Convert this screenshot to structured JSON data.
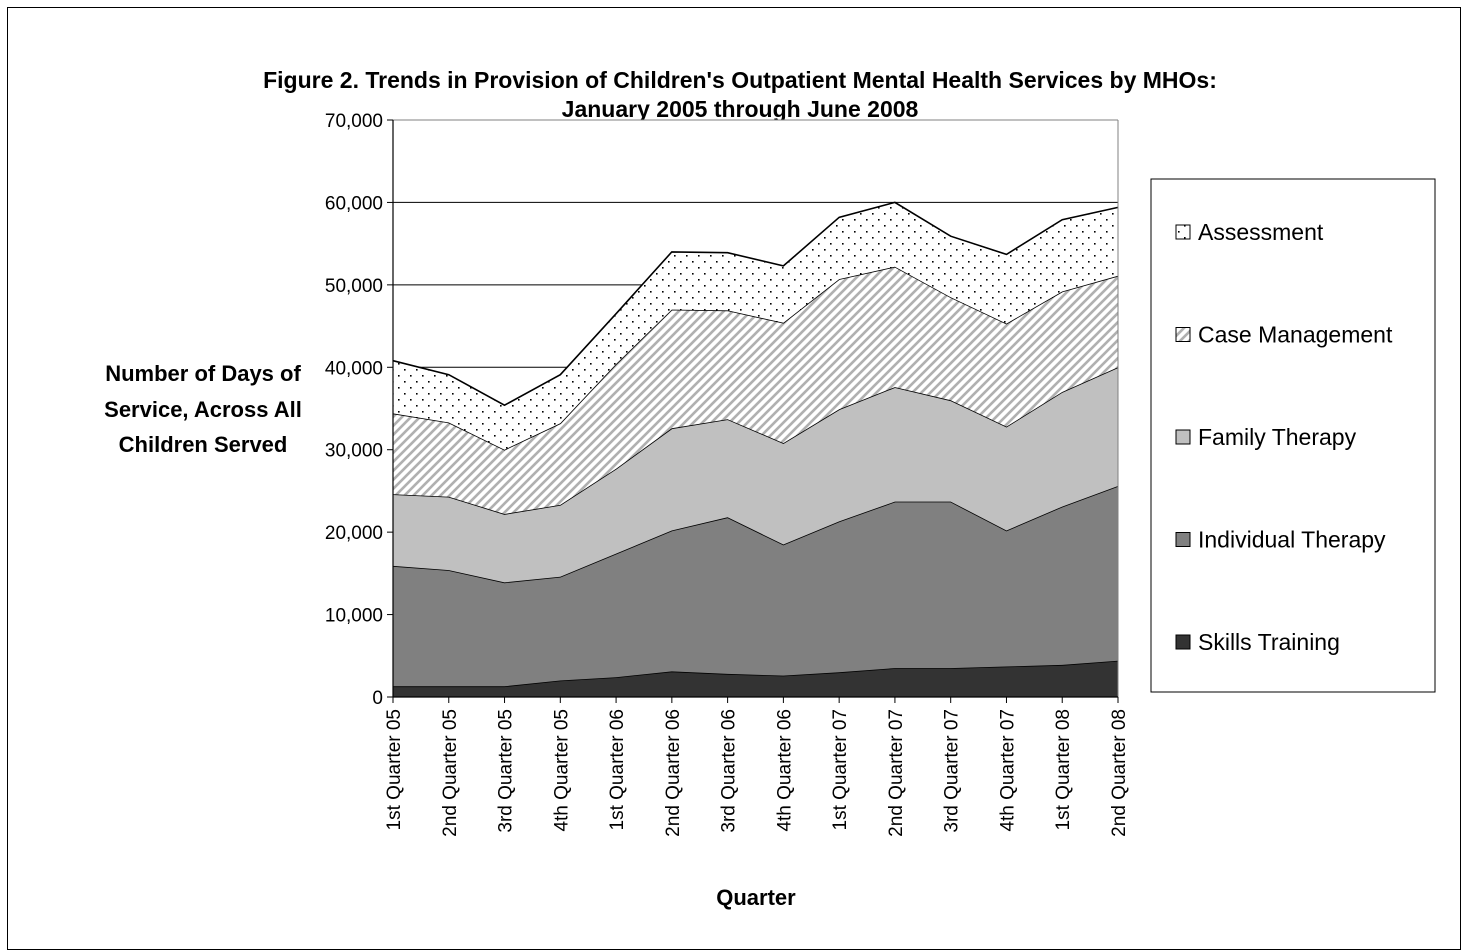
{
  "chart_data": {
    "type": "area",
    "stacked": true,
    "title": "Figure 2. Trends in Provision of Children's Outpatient Mental Health Services by MHOs:",
    "subtitle": "January 2005 through June 2008",
    "xlabel": "Quarter",
    "ylabel": [
      "Number of Days of",
      "Service, Across All",
      "Children Served"
    ],
    "ylim": [
      0,
      70000
    ],
    "yticks": [
      0,
      10000,
      20000,
      30000,
      40000,
      50000,
      60000,
      70000
    ],
    "ytick_labels": [
      "0",
      "10,000",
      "20,000",
      "30,000",
      "40,000",
      "50,000",
      "60,000",
      "70,000"
    ],
    "grid": "horizontal",
    "legend_position": "right",
    "categories": [
      "1st Quarter 05",
      "2nd Quarter 05",
      "3rd Quarter 05",
      "4th Quarter 05",
      "1st Quarter 06",
      "2nd Quarter 06",
      "3rd Quarter 06",
      "4th Quarter 06",
      "1st Quarter 07",
      "2nd Quarter 07",
      "3rd Quarter 07",
      "4th Quarter 07",
      "1st Quarter 08",
      "2nd Quarter 08"
    ],
    "series": [
      {
        "name": "Skills Training",
        "fill": "#333333",
        "pattern": "solid",
        "values": [
          1300,
          1300,
          1300,
          2000,
          2400,
          3100,
          2800,
          2600,
          3000,
          3500,
          3500,
          3700,
          3900,
          4400
        ]
      },
      {
        "name": "Individual Therapy",
        "fill": "#808080",
        "pattern": "solid",
        "values": [
          14600,
          14100,
          12600,
          12600,
          15000,
          17100,
          19000,
          15900,
          18300,
          20200,
          20200,
          16500,
          19200,
          21200
        ]
      },
      {
        "name": "Family Therapy",
        "fill": "#c0c0c0",
        "pattern": "solid",
        "values": [
          8700,
          8900,
          8300,
          8700,
          10300,
          12400,
          11900,
          12300,
          13600,
          13900,
          12300,
          12600,
          13900,
          14400
        ]
      },
      {
        "name": "Case Management",
        "fill": "#ffffff",
        "pattern": "diagonal",
        "values": [
          9800,
          9000,
          7800,
          9900,
          12700,
          14400,
          13200,
          14600,
          15800,
          14600,
          12500,
          12500,
          12200,
          11100
        ]
      },
      {
        "name": "Assessment",
        "fill": "#ffffff",
        "pattern": "dots",
        "values": [
          6400,
          5800,
          5400,
          5900,
          6100,
          7000,
          7000,
          6900,
          7500,
          7800,
          7400,
          8400,
          8700,
          8300
        ]
      }
    ]
  }
}
